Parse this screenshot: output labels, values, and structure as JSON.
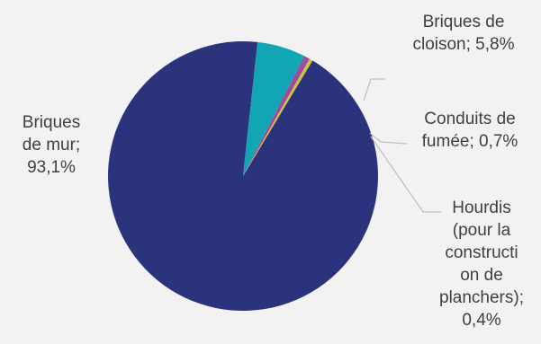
{
  "chart_data": {
    "type": "pie",
    "title": "",
    "slices": [
      {
        "name": "Briques de mur",
        "value": 93.1,
        "value_label": "93,1%",
        "color": "#2b337c",
        "label_lines": [
          "Briques",
          "de mur;",
          "93,1%"
        ]
      },
      {
        "name": "Briques de cloison",
        "value": 5.8,
        "value_label": "5,8%",
        "color": "#12a6b4",
        "label_lines": [
          "Briques de",
          "cloison; 5,8%"
        ]
      },
      {
        "name": "Conduits de fumée",
        "value": 0.7,
        "value_label": "0,7%",
        "color": "#a24a9e",
        "label_lines": [
          "Conduits de",
          "fumée; 0,7%"
        ]
      },
      {
        "name": "Hourdis (pour la construction de planchers)",
        "value": 0.4,
        "value_label": "0,4%",
        "color": "#c3c83a",
        "label_lines": [
          "Hourdis",
          "(pour la",
          "constructi",
          "on de",
          "planchers);",
          "0,4%"
        ]
      }
    ],
    "legend": "none",
    "data_labels": "outside with leader lines"
  }
}
